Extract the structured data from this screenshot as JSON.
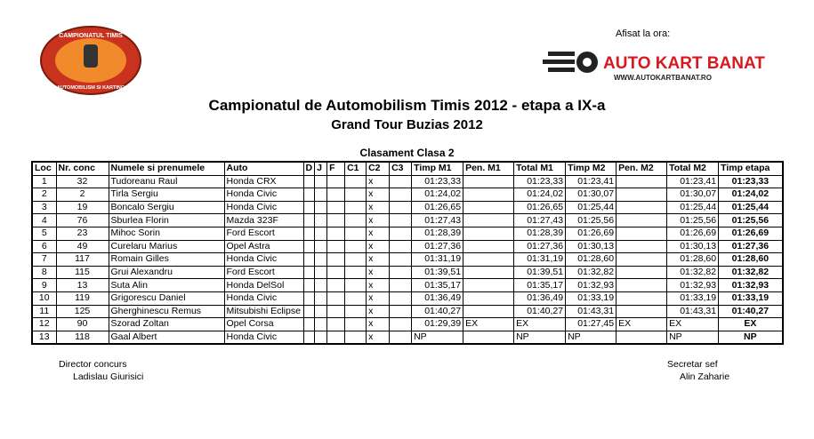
{
  "header": {
    "afisat": "Afisat la ora:",
    "logo_top": "CAMPIONATUL TIMIS",
    "logo_bottom": "AUTOMOBILISM SI KARTING",
    "brand": "AUTO KART BANAT",
    "brand_url": "WWW.AUTOKARTBANAT.RO",
    "title": "Campionatul de Automobilism Timis 2012 - etapa a IX-a",
    "subtitle": "Grand Tour Buzias 2012",
    "class": "Clasament Clasa 2"
  },
  "table": {
    "columns": [
      "Loc",
      "Nr. conc",
      "Numele si prenumele",
      "Auto",
      "D",
      "J",
      "F",
      "C1",
      "C2",
      "C3",
      "Timp M1",
      "Pen. M1",
      "Total M1",
      "Timp M2",
      "Pen. M2",
      "Total M2",
      "Timp etapa"
    ],
    "rows": [
      [
        "1",
        "32",
        "Tudoreanu Raul",
        "Honda CRX",
        null,
        null,
        null,
        null,
        "x",
        null,
        "01:23,33",
        null,
        "01:23,33",
        "01:23,41",
        null,
        "01:23,41",
        "01:23,33"
      ],
      [
        "2",
        "2",
        "Tirla Sergiu",
        "Honda Civic",
        null,
        null,
        null,
        null,
        "x",
        null,
        "01:24,02",
        null,
        "01:24,02",
        "01:30,07",
        null,
        "01:30,07",
        "01:24,02"
      ],
      [
        "3",
        "19",
        "Boncalo Sergiu",
        "Honda Civic",
        null,
        null,
        null,
        null,
        "x",
        null,
        "01:26,65",
        null,
        "01:26,65",
        "01:25,44",
        null,
        "01:25,44",
        "01:25,44"
      ],
      [
        "4",
        "76",
        "Sburlea Florin",
        "Mazda 323F",
        null,
        null,
        null,
        null,
        "x",
        null,
        "01:27,43",
        null,
        "01:27,43",
        "01:25,56",
        null,
        "01:25,56",
        "01:25,56"
      ],
      [
        "5",
        "23",
        "Mihoc Sorin",
        "Ford Escort",
        null,
        null,
        null,
        null,
        "x",
        null,
        "01:28,39",
        null,
        "01:28,39",
        "01:26,69",
        null,
        "01:26,69",
        "01:26,69"
      ],
      [
        "6",
        "49",
        "Curelaru Marius",
        "Opel Astra",
        null,
        null,
        null,
        null,
        "x",
        null,
        "01:27,36",
        null,
        "01:27,36",
        "01:30,13",
        null,
        "01:30,13",
        "01:27,36"
      ],
      [
        "7",
        "117",
        "Romain Gilles",
        "Honda Civic",
        null,
        null,
        null,
        null,
        "x",
        null,
        "01:31,19",
        null,
        "01:31,19",
        "01:28,60",
        null,
        "01:28,60",
        "01:28,60"
      ],
      [
        "8",
        "115",
        "Grui Alexandru",
        "Ford Escort",
        null,
        null,
        null,
        null,
        "x",
        null,
        "01:39,51",
        null,
        "01:39,51",
        "01:32,82",
        null,
        "01:32,82",
        "01:32,82"
      ],
      [
        "9",
        "13",
        "Suta Alin",
        "Honda DelSol",
        null,
        null,
        null,
        null,
        "x",
        null,
        "01:35,17",
        null,
        "01:35,17",
        "01:32,93",
        null,
        "01:32,93",
        "01:32,93"
      ],
      [
        "10",
        "119",
        "Grigorescu Daniel",
        "Honda Civic",
        null,
        null,
        null,
        null,
        "x",
        null,
        "01:36,49",
        null,
        "01:36,49",
        "01:33,19",
        null,
        "01:33,19",
        "01:33,19"
      ],
      [
        "11",
        "125",
        "Gherghinescu Remus",
        "Mitsubishi Eclipse",
        null,
        null,
        null,
        null,
        "x",
        null,
        "01:40,27",
        null,
        "01:40,27",
        "01:43,31",
        null,
        "01:43,31",
        "01:40,27"
      ],
      [
        "12",
        "90",
        "Szorad Zoltan",
        "Opel Corsa",
        null,
        null,
        null,
        null,
        "x",
        null,
        "01:29,39",
        "EX",
        "EX",
        "01:27,45",
        "EX",
        "EX",
        "EX"
      ],
      [
        "13",
        "118",
        "Gaal Albert",
        "Honda Civic",
        null,
        null,
        null,
        null,
        "x",
        null,
        "NP",
        null,
        "NP",
        "NP",
        null,
        "NP",
        "NP"
      ]
    ]
  },
  "footer": {
    "left_role": "Director concurs",
    "left_name": "Ladislau Giurisici",
    "right_role": "Secretar sef",
    "right_name": "Alin Zaharie"
  }
}
